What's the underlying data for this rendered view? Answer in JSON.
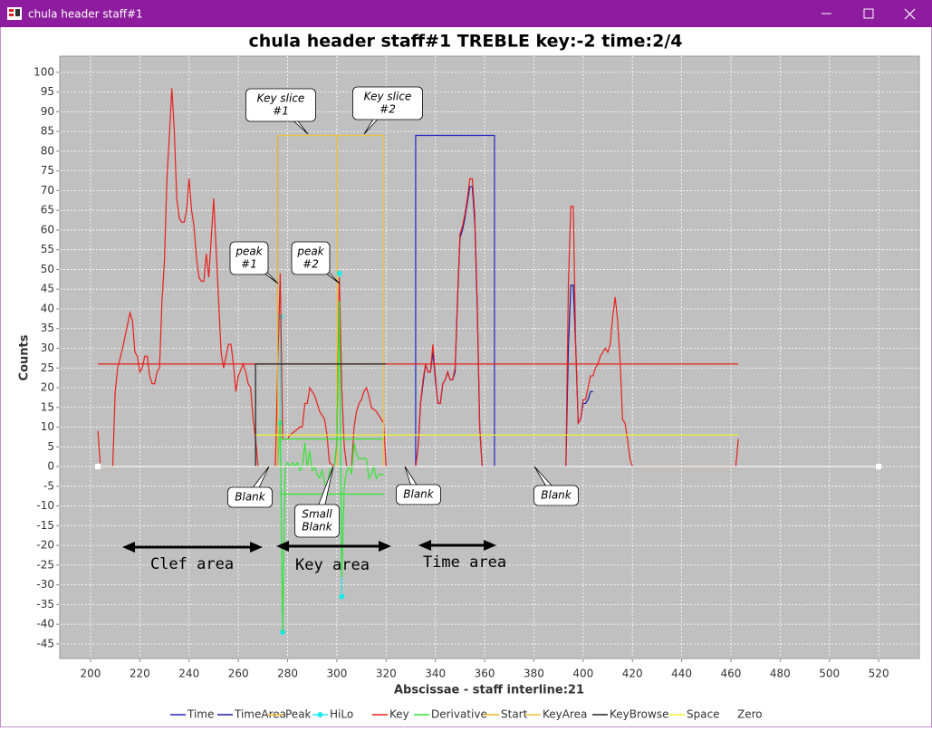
{
  "window": {
    "title": "chula header staff#1"
  },
  "chart_data": {
    "type": "line",
    "title": "chula header staff#1 TREBLE key:-2 time:2/4",
    "x_label": "Abscissae - staff interline:21",
    "y_label": "Counts",
    "xlim": [
      187.5,
      536.5
    ],
    "ylim": [
      -48.7,
      104.1
    ],
    "xticks": [
      200,
      220,
      240,
      260,
      280,
      300,
      320,
      340,
      360,
      380,
      400,
      420,
      440,
      460,
      480,
      500,
      520
    ],
    "yticks": [
      -45,
      -40,
      -35,
      -30,
      -25,
      -20,
      -15,
      -10,
      -5,
      0,
      5,
      10,
      15,
      20,
      25,
      30,
      35,
      40,
      45,
      50,
      55,
      60,
      65,
      70,
      75,
      80,
      85,
      90,
      95,
      100
    ],
    "grid": true,
    "series": [
      {
        "name": "Time",
        "color": "#2323c8",
        "x": [
          332,
          332,
          364,
          364
        ],
        "values": [
          0,
          84,
          84,
          0
        ]
      },
      {
        "name": "TimeArea",
        "color": "#1a1aa0",
        "x": [
          320,
          332,
          333,
          334,
          335,
          336,
          337,
          338,
          339,
          340,
          341,
          342,
          343,
          344,
          345,
          346,
          347,
          348,
          349,
          350,
          351,
          352,
          353,
          354,
          355,
          356,
          357,
          358,
          359,
          393,
          394,
          395,
          396,
          397,
          398,
          399,
          400,
          401,
          402,
          403,
          404
        ],
        "values": [
          0,
          0,
          5,
          16,
          21,
          26,
          24,
          24,
          29,
          22,
          16,
          16,
          21,
          22,
          24,
          22,
          22,
          24,
          42,
          58,
          60,
          63,
          67,
          71,
          71,
          62,
          40,
          10,
          0,
          0,
          30,
          46,
          46,
          30,
          11,
          12,
          16,
          16,
          17,
          19,
          19
        ]
      },
      {
        "name": "Peak",
        "color": "#f2c12e",
        "x": [
          300,
          300
        ],
        "values": [
          0,
          84
        ]
      },
      {
        "name": "HiLo",
        "color": "#1ee8e8",
        "markers": true,
        "x": [
          277,
          277,
          278,
          null,
          301,
          302
        ],
        "values": [
          38,
          11,
          -42,
          null,
          49,
          -33
        ]
      },
      {
        "name": "Key",
        "color": "#e8201c",
        "x": [
          203,
          204,
          209,
          210,
          211,
          213,
          215,
          216,
          217,
          218,
          219,
          220,
          221,
          222,
          223,
          224,
          225,
          226,
          227,
          228,
          229,
          230,
          231,
          232,
          233,
          234,
          235,
          236,
          237,
          238,
          239,
          240,
          241,
          242,
          243,
          244,
          245,
          246,
          247,
          248,
          249,
          250,
          251,
          252,
          253,
          254,
          255,
          256,
          257,
          258,
          259,
          260,
          262,
          263,
          264,
          265,
          266,
          267,
          268,
          275,
          276,
          277,
          278,
          280,
          281,
          283,
          285,
          286,
          287,
          288,
          289,
          290,
          291,
          292,
          293,
          294,
          295,
          296,
          297,
          299,
          300,
          301,
          302,
          303,
          304,
          306,
          307,
          308,
          309,
          310,
          311,
          312,
          313,
          314,
          316,
          318,
          319,
          320,
          332,
          333,
          334,
          335,
          336,
          337,
          338,
          339,
          340,
          341,
          342,
          343,
          344,
          345,
          346,
          347,
          348,
          349,
          350,
          351,
          352,
          353,
          354,
          355,
          356,
          357,
          358,
          359,
          393,
          394,
          395,
          396,
          397,
          398,
          399,
          400,
          401,
          402,
          403,
          404,
          405,
          406,
          407,
          408,
          409,
          410,
          411,
          412,
          413,
          414,
          415,
          416,
          417,
          418,
          419,
          420,
          462,
          463,
          null,
          203,
          463
        ],
        "values": [
          9,
          0,
          0,
          19,
          25,
          30,
          36,
          39,
          37,
          29,
          28,
          24,
          25,
          28,
          28,
          23,
          21,
          21,
          24,
          25,
          42,
          52,
          73,
          84,
          96,
          85,
          68,
          63,
          62,
          62,
          65,
          73,
          65,
          61,
          53,
          48,
          47,
          47,
          54,
          48,
          58,
          68,
          55,
          42,
          29,
          25,
          28,
          31,
          31,
          26,
          19,
          23,
          26,
          24,
          21,
          20,
          12,
          7,
          0,
          0,
          25,
          49,
          7,
          7,
          8,
          9,
          10,
          10,
          16,
          16,
          20,
          19,
          18,
          16,
          14,
          13,
          12,
          8,
          1,
          0,
          6,
          48,
          20,
          5,
          0,
          0,
          10,
          14,
          16,
          17,
          19,
          20,
          18,
          15,
          14,
          12,
          11,
          0,
          0,
          5,
          16,
          22,
          26,
          24,
          24,
          31,
          23,
          16,
          16,
          21,
          22,
          24,
          22,
          22,
          25,
          43,
          59,
          61,
          64,
          68,
          73,
          73,
          64,
          42,
          10,
          0,
          0,
          46,
          66,
          66,
          30,
          11,
          12,
          17,
          17,
          20,
          23,
          23,
          25,
          26,
          28,
          29,
          30,
          29,
          31,
          38,
          43,
          37,
          27,
          12,
          11,
          7,
          2,
          0,
          0,
          7,
          null,
          26,
          26
        ]
      },
      {
        "name": "Derivative",
        "color": "#33e633",
        "x": [
          276,
          277,
          278,
          279,
          280,
          281,
          282,
          283,
          284,
          285,
          286,
          287,
          288,
          289,
          290,
          291,
          292,
          293,
          294,
          295,
          296,
          297,
          298,
          299,
          300,
          301,
          302,
          303,
          304,
          305,
          306,
          307,
          308,
          309,
          310,
          311,
          312,
          313,
          314,
          315,
          316,
          317,
          318,
          319,
          null,
          277,
          319,
          null,
          277,
          319
        ],
        "values": [
          0,
          12,
          -42,
          0,
          1,
          0,
          1,
          0,
          1,
          -1,
          0,
          6,
          0,
          4,
          -1,
          0,
          -2,
          -3,
          -1,
          -4,
          -6,
          -1,
          0,
          0,
          6,
          42,
          -28,
          -5,
          -1,
          0,
          -2,
          6,
          3,
          2,
          2,
          2,
          2,
          -3,
          -2,
          0,
          -3,
          -2,
          -2,
          -2,
          null,
          7,
          7,
          null,
          -7,
          -7
        ]
      },
      {
        "name": "Start",
        "color": "#e9b41f",
        "x": [
          276,
          276
        ],
        "values": [
          0,
          84
        ]
      },
      {
        "name": "KeyArea",
        "color": "#efc23a",
        "x": [
          276,
          319,
          319
        ],
        "values": [
          84,
          84,
          0
        ]
      },
      {
        "name": "KeyBrowse",
        "color": "#202020",
        "x": [
          267,
          267,
          320
        ],
        "values": [
          0,
          26,
          26
        ]
      },
      {
        "name": "Space",
        "color": "#f2f22e",
        "x": [
          267,
          463
        ],
        "values": [
          8,
          8
        ]
      },
      {
        "name": "Zero",
        "color": "#ffffff",
        "end_squares": true,
        "x": [
          203,
          520
        ],
        "values": [
          0,
          0
        ]
      }
    ],
    "annotations": [
      {
        "text": [
          "Key slice",
          "#1"
        ]
      },
      {
        "text": [
          "Key slice",
          "#2"
        ]
      },
      {
        "text": [
          "peak",
          "#1"
        ]
      },
      {
        "text": [
          "peak",
          "#2"
        ]
      },
      {
        "text": [
          "Blank"
        ]
      },
      {
        "text": [
          "Small",
          "Blank"
        ]
      },
      {
        "text": [
          "Blank"
        ]
      },
      {
        "text": [
          "Blank"
        ]
      }
    ],
    "area_labels": [
      "Clef area",
      "Key area",
      "Time area"
    ]
  }
}
